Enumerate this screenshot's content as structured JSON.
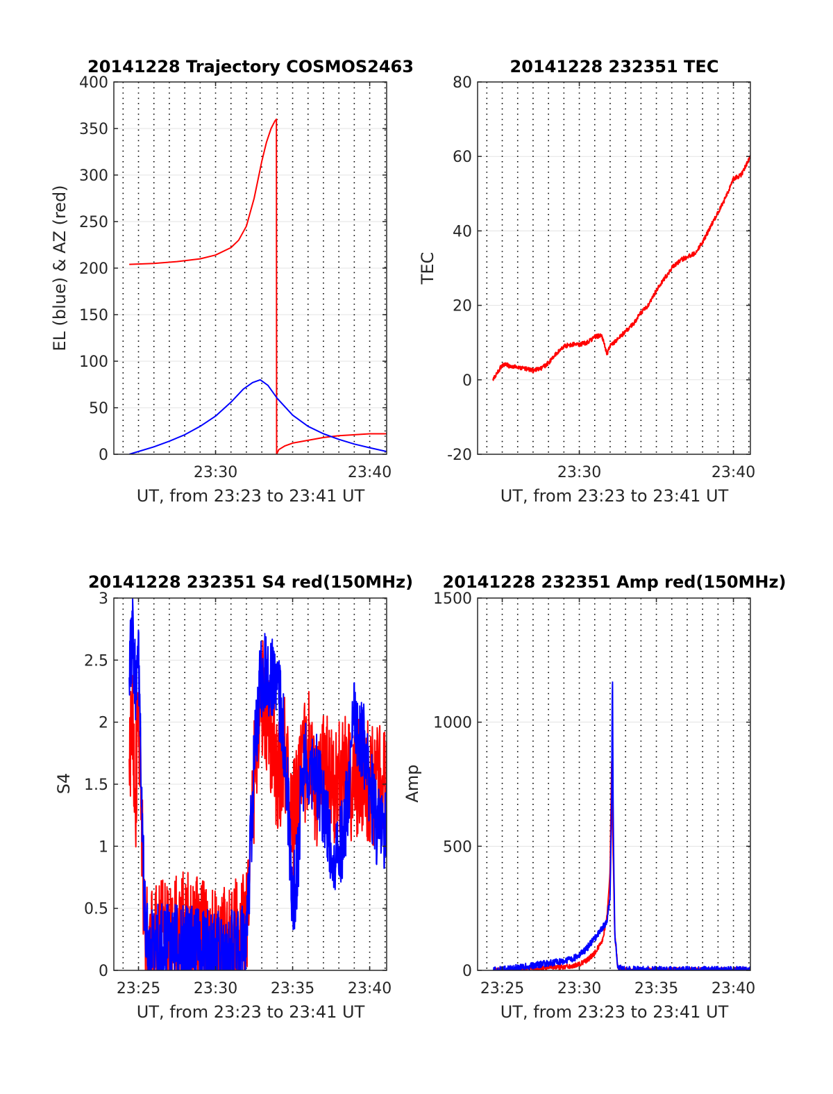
{
  "chart_data": [
    {
      "type": "line",
      "title": "20141228 Trajectory COSMOS2463",
      "xlabel": "UT, from 23:23 to 23:41 UT",
      "ylabel": "EL (blue) & AZ (red)",
      "xlim": [
        23.4,
        41.1
      ],
      "ylim": [
        0,
        400
      ],
      "xticks": [
        30,
        40
      ],
      "xtick_labels": [
        "23:30",
        "23:40"
      ],
      "yticks": [
        0,
        50,
        100,
        150,
        200,
        250,
        300,
        350,
        400
      ],
      "ytick_labels": [
        "0",
        "50",
        "100",
        "150",
        "200",
        "250",
        "300",
        "350",
        "400"
      ],
      "grid": "horizontal solid, vertical dotted every minute",
      "series": [
        {
          "color": "#ff0000",
          "noise": 0,
          "x": [
            24.4,
            26.0,
            27.5,
            29.0,
            30.0,
            31.0,
            31.5,
            32.0,
            32.5,
            33.0,
            33.3,
            33.6,
            33.85,
            33.95,
            33.96,
            34.1,
            34.5,
            35.0,
            36.0,
            37.0,
            38.0,
            39.0,
            40.0,
            41.1
          ],
          "y": [
            204,
            205,
            207,
            210,
            214,
            222,
            230,
            245,
            275,
            315,
            335,
            350,
            358,
            360,
            0,
            5,
            9,
            12,
            15,
            18,
            20,
            21,
            22,
            22
          ]
        },
        {
          "color": "#0000ff",
          "noise": 0,
          "x": [
            24.4,
            25.0,
            26.0,
            27.0,
            28.0,
            29.0,
            30.0,
            31.0,
            31.8,
            32.4,
            32.9,
            33.4,
            34.0,
            35.0,
            36.0,
            37.0,
            38.0,
            39.0,
            40.0,
            41.1
          ],
          "y": [
            0,
            3,
            8,
            14,
            21,
            30,
            41,
            56,
            70,
            77,
            80,
            74,
            60,
            42,
            30,
            22,
            16,
            11,
            7,
            3
          ]
        }
      ]
    },
    {
      "type": "line",
      "title": "20141228 232351 TEC",
      "xlabel": "UT, from 23:23 to 23:41 UT",
      "ylabel": "TEC",
      "xlim": [
        23.4,
        41.1
      ],
      "ylim": [
        -20,
        80
      ],
      "xticks": [
        30,
        40
      ],
      "xtick_labels": [
        "23:30",
        "23:40"
      ],
      "yticks": [
        -20,
        0,
        20,
        40,
        60,
        80
      ],
      "ytick_labels": [
        "-20",
        "0",
        "20",
        "40",
        "60",
        "80"
      ],
      "grid": "horizontal solid, vertical dotted every minute",
      "series": [
        {
          "color": "#ff0000",
          "noise": 0.6,
          "x": [
            24.4,
            24.7,
            25.0,
            25.3,
            25.6,
            26.0,
            26.5,
            27.0,
            27.5,
            28.0,
            28.5,
            29.0,
            29.5,
            30.0,
            30.5,
            31.0,
            31.4,
            31.6,
            31.8,
            32.0,
            32.5,
            33.0,
            33.5,
            34.0,
            34.5,
            35.0,
            35.5,
            36.0,
            36.5,
            37.0,
            37.5,
            38.0,
            38.5,
            39.0,
            39.5,
            40.0,
            40.5,
            41.1
          ],
          "y": [
            0,
            2,
            4,
            4,
            3.5,
            3.5,
            3,
            2.5,
            3,
            4.5,
            7,
            9,
            9.5,
            9.5,
            10,
            11.5,
            12,
            10,
            7,
            9,
            11,
            13,
            15,
            18,
            20,
            24,
            27,
            30,
            32,
            33,
            34,
            37,
            41,
            45,
            49,
            54,
            55,
            60
          ]
        }
      ]
    },
    {
      "type": "line",
      "title": "20141228 232351 S4 red(150MHz)",
      "xlabel": "UT, from 23:23 to 23:41 UT",
      "ylabel": "S4",
      "xlim": [
        23.4,
        41.1
      ],
      "ylim": [
        0,
        3
      ],
      "xticks": [
        25,
        30,
        35,
        40
      ],
      "xtick_labels": [
        "23:25",
        "23:30",
        "23:35",
        "23:40"
      ],
      "yticks": [
        0,
        0.5,
        1,
        1.5,
        2,
        2.5,
        3
      ],
      "ytick_labels": [
        "0",
        "0.5",
        "1",
        "1.5",
        "2",
        "2.5",
        "3"
      ],
      "grid": "horizontal solid, vertical dotted every minute",
      "series": [
        {
          "color": "#ff0000",
          "noise": 0.5,
          "x": [
            24.4,
            24.6,
            24.8,
            25.0,
            25.2,
            25.4,
            25.6,
            26.0,
            27.0,
            28.0,
            29.0,
            30.0,
            31.0,
            31.5,
            32.0,
            32.3,
            32.6,
            33.0,
            33.5,
            34.0,
            34.5,
            35.0,
            35.5,
            36.0,
            36.5,
            37.0,
            37.5,
            38.0,
            38.5,
            39.0,
            39.5,
            40.0,
            40.5,
            41.1
          ],
          "y": [
            1.5,
            2.2,
            1.4,
            2.0,
            1.2,
            0.3,
            0.15,
            0.2,
            0.28,
            0.3,
            0.25,
            0.2,
            0.2,
            0.28,
            0.4,
            1.0,
            1.8,
            2.2,
            2.0,
            1.5,
            1.8,
            1.2,
            1.5,
            1.8,
            1.4,
            1.6,
            1.5,
            1.5,
            1.6,
            1.5,
            1.6,
            1.5,
            1.5,
            1.4
          ]
        },
        {
          "color": "#0000ff",
          "noise": 0.35,
          "x": [
            24.4,
            24.6,
            24.8,
            25.0,
            25.2,
            25.4,
            25.6,
            26.0,
            27.0,
            28.0,
            29.0,
            30.0,
            31.0,
            31.5,
            32.0,
            32.3,
            32.6,
            33.0,
            33.5,
            34.0,
            34.5,
            35.0,
            35.3,
            35.6,
            36.0,
            36.5,
            37.0,
            37.5,
            38.0,
            38.5,
            39.0,
            39.5,
            40.0,
            40.5,
            41.1
          ],
          "y": [
            2.5,
            2.7,
            2.3,
            2.6,
            1.5,
            0.4,
            0.15,
            0.18,
            0.2,
            0.18,
            0.16,
            0.15,
            0.14,
            0.15,
            0.25,
            1.1,
            1.9,
            2.4,
            2.4,
            2.3,
            1.8,
            0.6,
            0.8,
            1.6,
            1.7,
            1.6,
            1.3,
            1.0,
            0.9,
            1.3,
            2.0,
            1.9,
            1.5,
            1.1,
            1.2
          ]
        }
      ]
    },
    {
      "type": "line",
      "title": "20141228 232351 Amp red(150MHz)",
      "xlabel": "UT, from 23:23 to 23:41 UT",
      "ylabel": "Amp",
      "xlim": [
        23.4,
        41.1
      ],
      "ylim": [
        0,
        1500
      ],
      "xticks": [
        25,
        30,
        35,
        40
      ],
      "xtick_labels": [
        "23:25",
        "23:30",
        "23:35",
        "23:40"
      ],
      "yticks": [
        0,
        500,
        1000,
        1500
      ],
      "ytick_labels": [
        "0",
        "500",
        "1000",
        "1500"
      ],
      "grid": "horizontal solid, vertical dotted every minute",
      "series": [
        {
          "color": "#ff0000",
          "noise": 10,
          "x": [
            24.4,
            26.0,
            27.0,
            28.0,
            29.0,
            29.5,
            30.0,
            30.5,
            31.0,
            31.5,
            31.8,
            32.0,
            32.1,
            32.2,
            32.3,
            32.5,
            33.0,
            35.0,
            41.1
          ],
          "y": [
            0,
            3,
            8,
            12,
            15,
            18,
            25,
            40,
            70,
            120,
            220,
            400,
            840,
            450,
            150,
            10,
            2,
            1,
            1
          ]
        },
        {
          "color": "#0000ff",
          "noise": 14,
          "x": [
            24.4,
            25.5,
            26.0,
            27.0,
            28.0,
            29.0,
            29.5,
            30.0,
            30.5,
            31.0,
            31.5,
            31.8,
            32.0,
            32.1,
            32.15,
            32.2,
            32.3,
            32.5,
            33.0,
            35.0,
            41.1
          ],
          "y": [
            0,
            5,
            10,
            20,
            30,
            35,
            45,
            60,
            90,
            130,
            170,
            200,
            300,
            700,
            1240,
            600,
            150,
            10,
            3,
            2,
            2
          ]
        }
      ]
    }
  ]
}
